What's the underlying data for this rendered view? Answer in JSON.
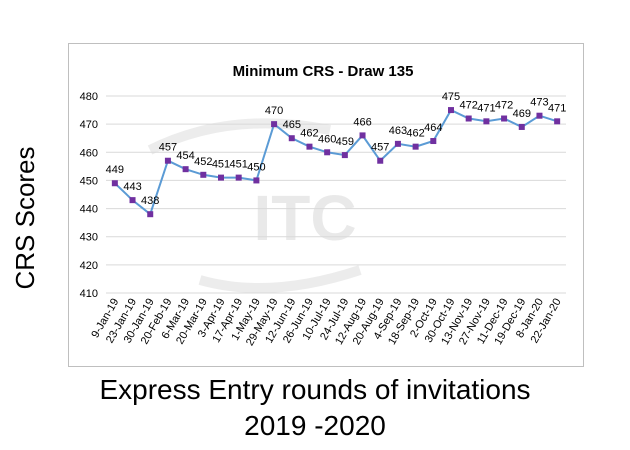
{
  "chart_data": {
    "type": "line",
    "title": "Minimum CRS - Draw 135",
    "ylabel": "CRS Scores",
    "xlabel_lines": [
      "Express Entry rounds of invitations",
      "2019 -2020"
    ],
    "ylim": [
      410,
      480
    ],
    "yticks": [
      410,
      420,
      430,
      440,
      450,
      460,
      470,
      480
    ],
    "grid": true,
    "watermark": "ITC",
    "series": [
      {
        "name": "Minimum CRS",
        "color": "#5b9bd5",
        "marker_color": "#7030a0",
        "x": [
          "9-Jan-19",
          "23-Jan-19",
          "30-Jan-19",
          "20-Feb-19",
          "6-Mar-19",
          "20-Mar-19",
          "3-Apr-19",
          "17-Apr-19",
          "1-May-19",
          "29-May-19",
          "12-Jun-19",
          "26-Jun-19",
          "10-Jul-19",
          "24-Jul-19",
          "12-Aug-19",
          "20-Aug-19",
          "4-Sep-19",
          "18-Sep-19",
          "2-Oct-19",
          "30-Oct-19",
          "13-Nov-19",
          "27-Nov-19",
          "11-Dec-19",
          "19-Dec-19",
          "8-Jan-20",
          "22-Jan-20"
        ],
        "values": [
          449,
          443,
          438,
          457,
          454,
          452,
          451,
          451,
          450,
          470,
          465,
          462,
          460,
          459,
          466,
          457,
          463,
          462,
          464,
          475,
          472,
          471,
          472,
          469,
          473,
          471
        ]
      }
    ]
  }
}
